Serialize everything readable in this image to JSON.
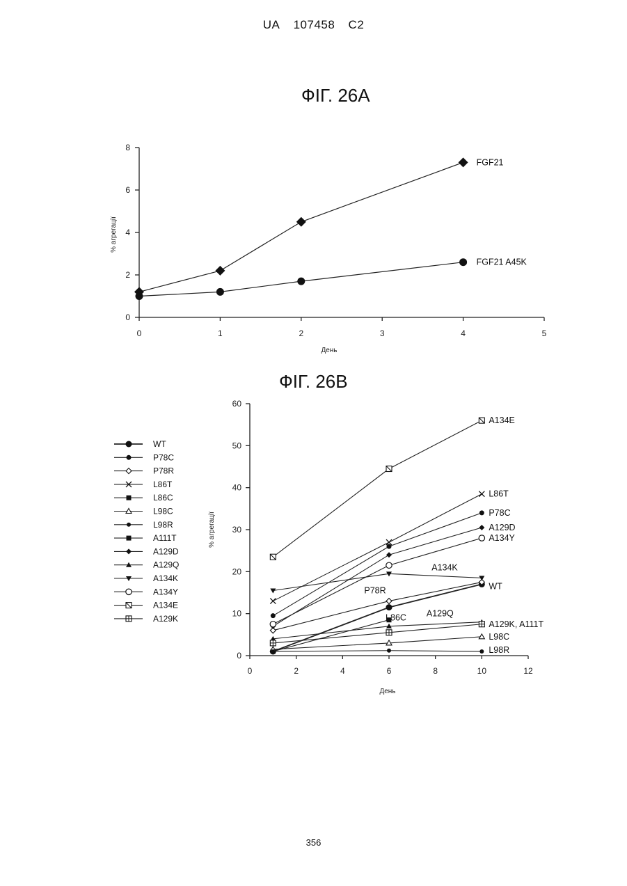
{
  "header": {
    "country": "UA",
    "number": "107458",
    "kind": "C2"
  },
  "page_number": "356",
  "chart_data": [
    {
      "type": "line",
      "title": "ФІГ. 26A",
      "xlabel": "День",
      "ylabel": "% агрегації",
      "xlim": [
        0,
        5
      ],
      "ylim": [
        0,
        8
      ],
      "xticks": [
        "0",
        "1",
        "2",
        "3",
        "4",
        "5"
      ],
      "yticks": [
        "0",
        "2",
        "4",
        "6",
        "8"
      ],
      "series": [
        {
          "name": "FGF21",
          "marker": "diamond",
          "points": [
            [
              0,
              1.2
            ],
            [
              1,
              2.2
            ],
            [
              2,
              4.5
            ],
            [
              4,
              7.3
            ]
          ]
        },
        {
          "name": "FGF21 A45K",
          "marker": "circle",
          "points": [
            [
              0,
              1.0
            ],
            [
              1,
              1.2
            ],
            [
              2,
              1.7
            ],
            [
              4,
              2.6
            ]
          ]
        }
      ]
    },
    {
      "type": "line",
      "title": "ФІГ. 26B",
      "xlabel": "День",
      "ylabel": "% агрегації",
      "xlim": [
        0,
        12
      ],
      "ylim": [
        0,
        60
      ],
      "xticks": [
        "0",
        "2",
        "4",
        "6",
        "8",
        "10",
        "12"
      ],
      "yticks": [
        "0",
        "10",
        "20",
        "30",
        "40",
        "50",
        "60"
      ],
      "legend_position": "left",
      "series": [
        {
          "name": "WT",
          "marker": "circle-filled-large",
          "points": [
            [
              1,
              1.0
            ],
            [
              6,
              11.5
            ],
            [
              10,
              17.0
            ]
          ]
        },
        {
          "name": "P78C",
          "marker": "circle-filled",
          "points": [
            [
              1,
              9.5
            ],
            [
              6,
              26.0
            ],
            [
              10,
              34.0
            ]
          ]
        },
        {
          "name": "P78R",
          "marker": "diamond-open",
          "points": [
            [
              1,
              6.0
            ],
            [
              6,
              13.0
            ],
            [
              10,
              17.5
            ]
          ]
        },
        {
          "name": "L86T",
          "marker": "x",
          "points": [
            [
              1,
              13.0
            ],
            [
              6,
              27.0
            ],
            [
              10,
              38.5
            ]
          ]
        },
        {
          "name": "L86C",
          "marker": "square-filled",
          "points": [
            [
              1,
              1.0
            ],
            [
              6,
              8.5
            ]
          ]
        },
        {
          "name": "L98C",
          "marker": "triangle-open",
          "points": [
            [
              1,
              1.5
            ],
            [
              6,
              3.0
            ],
            [
              10,
              4.5
            ]
          ]
        },
        {
          "name": "L98R",
          "marker": "circle-filled-small",
          "points": [
            [
              1,
              1.0
            ],
            [
              6,
              1.2
            ],
            [
              10,
              1.0
            ]
          ]
        },
        {
          "name": "A111T",
          "marker": "square-filled",
          "points": []
        },
        {
          "name": "A129D",
          "marker": "diamond-filled",
          "points": [
            [
              1,
              7.0
            ],
            [
              6,
              24.0
            ],
            [
              10,
              30.5
            ]
          ]
        },
        {
          "name": "A129Q",
          "marker": "triangle-filled",
          "points": [
            [
              1,
              4.0
            ],
            [
              6,
              7.0
            ],
            [
              10,
              8.0
            ]
          ]
        },
        {
          "name": "A134K",
          "marker": "triangle-down-filled",
          "points": [
            [
              1,
              15.5
            ],
            [
              6,
              19.5
            ],
            [
              10,
              18.5
            ]
          ]
        },
        {
          "name": "A134Y",
          "marker": "circle-open",
          "points": [
            [
              1,
              7.5
            ],
            [
              6,
              21.5
            ],
            [
              10,
              28.0
            ]
          ]
        },
        {
          "name": "A134E",
          "marker": "square-slash",
          "points": [
            [
              1,
              23.5
            ],
            [
              6,
              44.5
            ],
            [
              10,
              56.0
            ]
          ]
        },
        {
          "name": "A129K",
          "marker": "square-plus",
          "points": [
            [
              1,
              3.0
            ],
            [
              6,
              5.5
            ],
            [
              10,
              7.5
            ]
          ]
        }
      ],
      "annotations": [
        {
          "text": "A134E",
          "x": 10,
          "y": 56.0
        },
        {
          "text": "L86T",
          "x": 10,
          "y": 38.5
        },
        {
          "text": "P78C",
          "x": 10,
          "y": 34.0
        },
        {
          "text": "A129D",
          "x": 10,
          "y": 30.5
        },
        {
          "text": "A134Y",
          "x": 10,
          "y": 28.0
        },
        {
          "text": "A134K",
          "x": 8.4,
          "y": 21.0
        },
        {
          "text": "WT",
          "x": 10,
          "y": 16.5
        },
        {
          "text": "P78R",
          "x": 5.4,
          "y": 15.5
        },
        {
          "text": "L86C",
          "x": 6.3,
          "y": 9.0
        },
        {
          "text": "A129Q",
          "x": 8.2,
          "y": 10.0
        },
        {
          "text": "A129K, A111T",
          "x": 10,
          "y": 7.5
        },
        {
          "text": "L98C",
          "x": 10,
          "y": 4.5
        },
        {
          "text": "L98R",
          "x": 10,
          "y": 1.3
        }
      ]
    }
  ]
}
